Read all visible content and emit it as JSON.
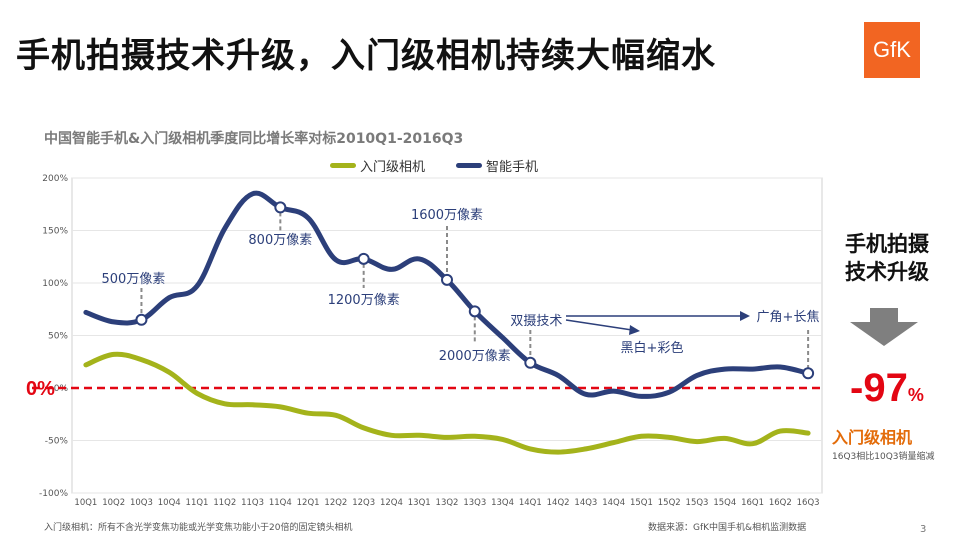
{
  "page": {
    "title": "手机拍摄技术升级，入门级相机持续大幅缩水",
    "logo_text": "GfK",
    "footnote": "入门级相机：所有不含光学变焦功能或光学变焦功能小于20倍的固定镜头相机",
    "source": "数据来源：GfK中国手机&相机监测数据",
    "page_number": "3"
  },
  "side_panel": {
    "heading_line1": "手机拍摄",
    "heading_line2": "技术升级",
    "big_value": "-97",
    "big_unit": "%",
    "label": "入门级相机",
    "note": "16Q3相比10Q3销量缩减"
  },
  "colors": {
    "camera": "#a4b31b",
    "phone": "#2c3f7a",
    "zero_line": "#e30613",
    "annotation": "#2c3f7a",
    "accent": "#f26522"
  },
  "chart_data": {
    "type": "line",
    "title": "中国智能手机&入门级相机季度同比增长率对标2010Q1-2016Q3",
    "categories": [
      "10Q1",
      "10Q2",
      "10Q3",
      "10Q4",
      "11Q1",
      "11Q2",
      "11Q3",
      "11Q4",
      "12Q1",
      "12Q2",
      "12Q3",
      "12Q4",
      "13Q1",
      "13Q2",
      "13Q3",
      "13Q4",
      "14Q1",
      "14Q2",
      "14Q3",
      "14Q4",
      "15Q1",
      "15Q2",
      "15Q3",
      "15Q4",
      "16Q1",
      "16Q2",
      "16Q3"
    ],
    "y_ticks": [
      "200%",
      "150%",
      "100%",
      "50%",
      "0%",
      "-50%",
      "-100%"
    ],
    "y_tick_values": [
      200,
      150,
      100,
      50,
      0,
      -50,
      -100
    ],
    "ylim": [
      -100,
      200
    ],
    "zero_label": "0%",
    "series": [
      {
        "name": "入门级相机",
        "values": [
          22,
          32,
          27,
          15,
          -5,
          -15,
          -16,
          -18,
          -24,
          -26,
          -38,
          -45,
          -45,
          -47,
          -46,
          -49,
          -58,
          -61,
          -58,
          -52,
          -46,
          -47,
          -51,
          -48,
          -53,
          -41,
          -43
        ]
      },
      {
        "name": "智能手机",
        "values": [
          72,
          63,
          65,
          86,
          97,
          152,
          185,
          172,
          162,
          122,
          123,
          113,
          123,
          103,
          73,
          48,
          24,
          12,
          -6,
          -3,
          -8,
          -4,
          12,
          18,
          18,
          20,
          14
        ]
      }
    ],
    "annotations": [
      {
        "text": "500万像素",
        "index": 2
      },
      {
        "text": "800万像素",
        "index": 7
      },
      {
        "text": "1200万像素",
        "index": 10
      },
      {
        "text": "1600万像素",
        "index": 13
      },
      {
        "text": "2000万像素",
        "index": 14
      },
      {
        "text": "双摄技术",
        "index": 16
      },
      {
        "text": "黑白+彩色"
      },
      {
        "text": "广角+长焦",
        "index": 26
      }
    ]
  }
}
